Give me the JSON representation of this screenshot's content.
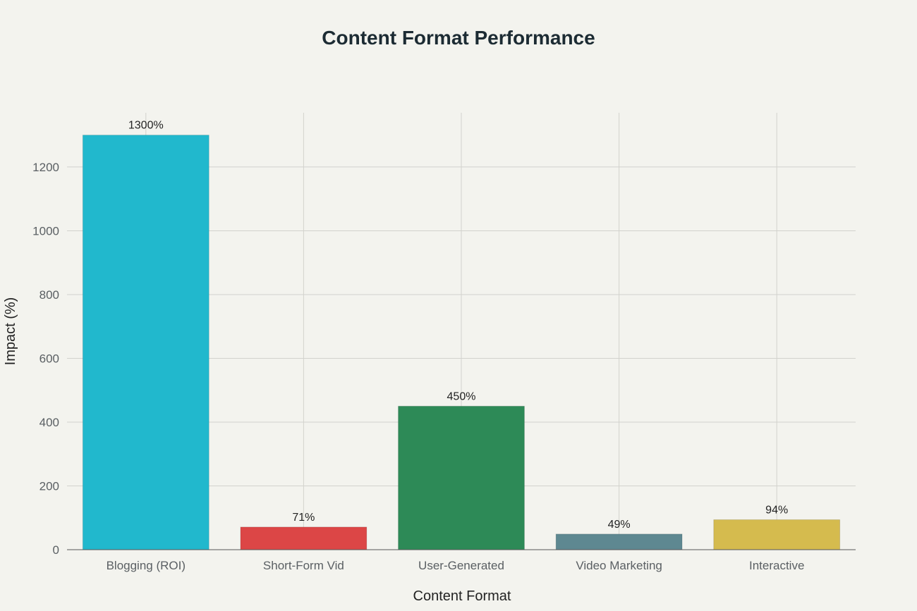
{
  "chart_data": {
    "type": "bar",
    "title": "Content Format Performance",
    "xlabel": "Content Format",
    "ylabel": "Impact (%)",
    "categories": [
      "Blogging (ROI)",
      "Short-Form Vid",
      "User-Generated",
      "Video Marketing",
      "Interactive"
    ],
    "values": [
      1300,
      71,
      450,
      49,
      94
    ],
    "data_labels": [
      "1300%",
      "71%",
      "450%",
      "49%",
      "94%"
    ],
    "colors": [
      "#21b8cd",
      "#dc4646",
      "#2d8a57",
      "#5e8891",
      "#d5bb4e"
    ],
    "ylim": [
      0,
      1370
    ],
    "yticks": [
      0,
      200,
      400,
      600,
      800,
      1000,
      1200
    ],
    "grid": true,
    "legend": "none"
  }
}
